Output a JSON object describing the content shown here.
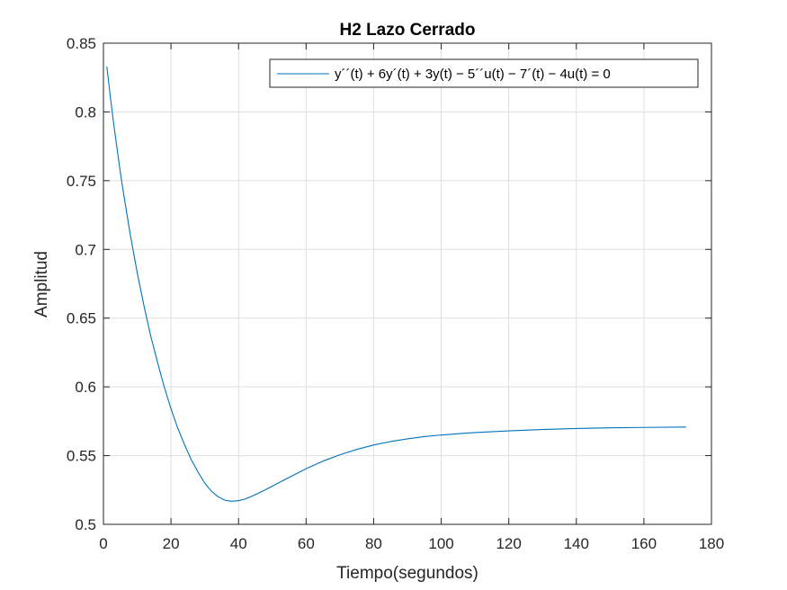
{
  "chart_data": {
    "type": "line",
    "title": "H2 Lazo Cerrado",
    "xlabel": "Tiempo(segundos)",
    "ylabel": "Amplitud",
    "xlim": [
      0,
      180
    ],
    "ylim": [
      0.5,
      0.85
    ],
    "xticks": [
      0,
      20,
      40,
      60,
      80,
      100,
      120,
      140,
      160,
      180
    ],
    "yticks": [
      0.5,
      0.55,
      0.6,
      0.65,
      0.7,
      0.75,
      0.8,
      0.85
    ],
    "xtick_labels": [
      "0",
      "20",
      "40",
      "60",
      "80",
      "100",
      "120",
      "140",
      "160",
      "180"
    ],
    "ytick_labels": [
      "0.5",
      "0.55",
      "0.6",
      "0.65",
      "0.7",
      "0.75",
      "0.8",
      "0.85"
    ],
    "grid": true,
    "legend_position": "top-right",
    "series": [
      {
        "name": "y´´(t) + 6y´(t) + 3y(t) − 5´´u(t) − 7´(t) − 4u(t) = 0",
        "color": "#0072BD",
        "x": [
          1,
          2,
          3,
          4,
          5,
          6,
          8,
          10,
          12,
          14,
          16,
          18,
          20,
          22,
          24,
          26,
          28,
          30,
          32,
          34,
          36,
          38,
          40,
          42,
          44,
          46,
          48,
          50,
          55,
          60,
          65,
          70,
          75,
          80,
          85,
          90,
          95,
          100,
          110,
          120,
          130,
          140,
          150,
          160,
          172.5
        ],
        "y": [
          0.833,
          0.812,
          0.792,
          0.774,
          0.756,
          0.74,
          0.71,
          0.683,
          0.659,
          0.637,
          0.618,
          0.6,
          0.584,
          0.57,
          0.558,
          0.547,
          0.538,
          0.53,
          0.524,
          0.52,
          0.5175,
          0.5168,
          0.5172,
          0.5185,
          0.5205,
          0.5228,
          0.5252,
          0.5278,
          0.5342,
          0.5405,
          0.546,
          0.5506,
          0.5545,
          0.5577,
          0.5602,
          0.5622,
          0.5638,
          0.565,
          0.5668,
          0.568,
          0.569,
          0.5697,
          0.5702,
          0.5705,
          0.5708
        ]
      }
    ]
  }
}
